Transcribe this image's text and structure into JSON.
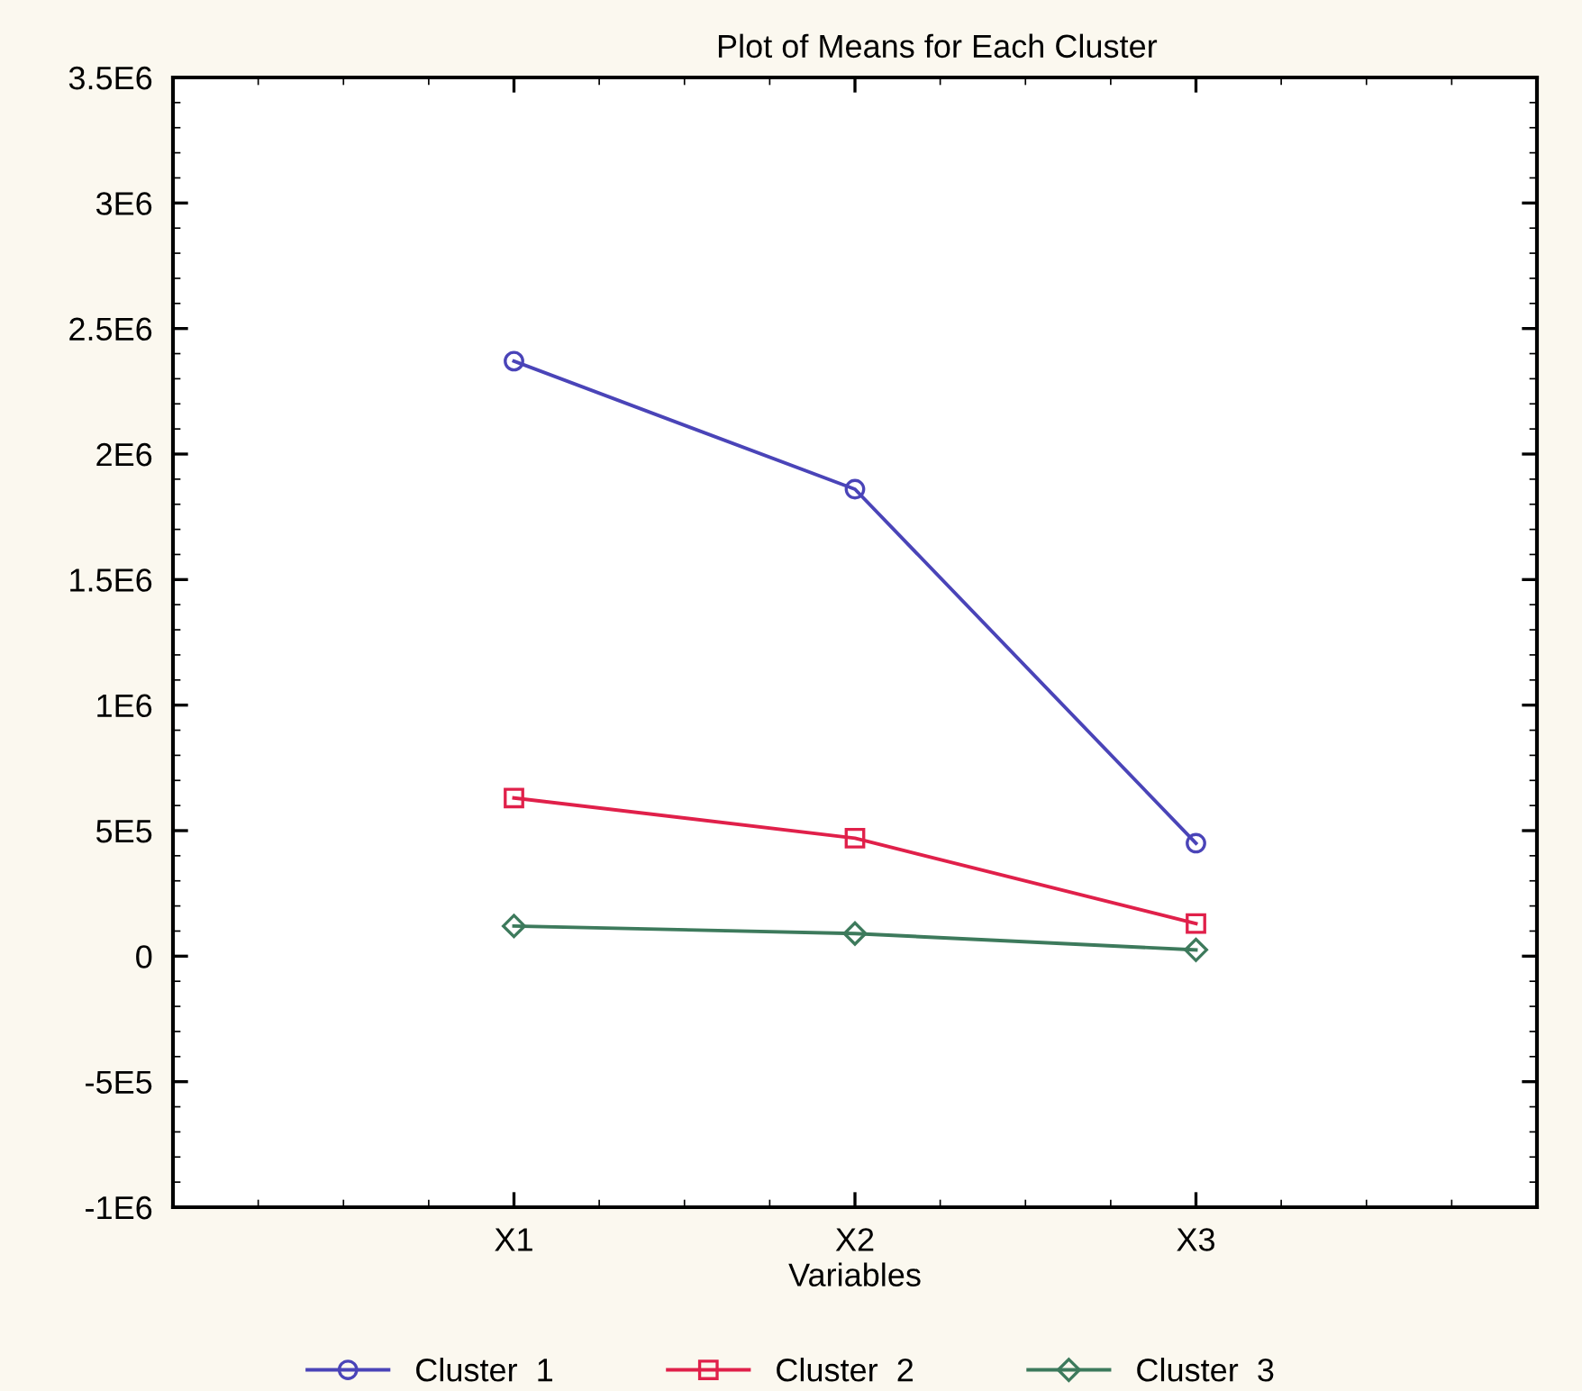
{
  "chart_data": {
    "type": "line",
    "title": "Plot of Means for Each Cluster",
    "xlabel": "Variables",
    "categories": [
      "X1",
      "X2",
      "X3"
    ],
    "series": [
      {
        "name": "Cluster  1",
        "color": "#4a44b8",
        "marker": "circle",
        "values": [
          2370000,
          1860000,
          450000
        ]
      },
      {
        "name": "Cluster  2",
        "color": "#e0204a",
        "marker": "square",
        "values": [
          630000,
          470000,
          130000
        ]
      },
      {
        "name": "Cluster  3",
        "color": "#3d7a5c",
        "marker": "diamond",
        "values": [
          120000,
          90000,
          25000
        ]
      }
    ],
    "ylim": [
      -1000000,
      3500000
    ],
    "yticks": [
      {
        "value": -1000000,
        "label": "-1E6"
      },
      {
        "value": -500000,
        "label": "-5E5"
      },
      0,
      {
        "value": 500000,
        "label": "5E5"
      },
      {
        "value": 1000000,
        "label": "1E6"
      },
      {
        "value": 1500000,
        "label": "1.5E6"
      },
      {
        "value": 2000000,
        "label": "2E6"
      },
      {
        "value": 2500000,
        "label": "2.5E6"
      },
      {
        "value": 3000000,
        "label": "3E6"
      },
      {
        "value": 3500000,
        "label": "3.5E6"
      }
    ],
    "grid": false,
    "legend": "bottom",
    "line_style": "solid"
  }
}
